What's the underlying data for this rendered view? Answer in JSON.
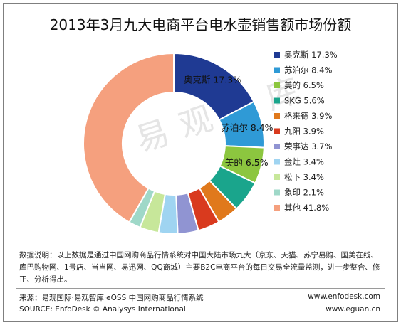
{
  "title": "2013年3月九大电商平台电水壶销售额市场份额",
  "watermark": "易观智库",
  "note": "数据说明：以上数据是通过中国网购商品行情系统对中国大陆市场九大（京东、天猫、苏宁易购、国美在线、库巴购物网、1号店、当当网、易迅网、QQ商城）主要B2C电商平台的每日交易全流量监测，进一步整合、修正、分析得出。",
  "footer": {
    "source_cn": "来源：易观国际·易观智库·eOSS 中国网购商品行情系统",
    "source_en": "SOURCE: EnfoDesk © Analysys International",
    "site1": "www.enfodesk.com",
    "site2": "www.eguan.cn"
  },
  "chart_data": {
    "type": "pie",
    "donut": true,
    "title": "2013年3月九大电商平台电水壶销售额市场份额",
    "unit": "%",
    "legend_position": "right",
    "series": [
      {
        "name": "奥克斯",
        "value": 17.3,
        "color": "#1f3a93"
      },
      {
        "name": "苏泊尔",
        "value": 8.4,
        "color": "#2f9ad6"
      },
      {
        "name": "美的",
        "value": 6.5,
        "color": "#8cc63f"
      },
      {
        "name": "SKG",
        "value": 5.6,
        "color": "#1aa58c"
      },
      {
        "name": "格来德",
        "value": 3.9,
        "color": "#e0791c"
      },
      {
        "name": "九阳",
        "value": 3.9,
        "color": "#d93a1e"
      },
      {
        "name": "荣事达",
        "value": 3.7,
        "color": "#9094d2"
      },
      {
        "name": "金灶",
        "value": 3.4,
        "color": "#9fd4f1"
      },
      {
        "name": "松下",
        "value": 3.4,
        "color": "#c7e79a"
      },
      {
        "name": "象印",
        "value": 2.1,
        "color": "#9fd8c8"
      },
      {
        "name": "其他",
        "value": 41.8,
        "color": "#f5a07e"
      }
    ],
    "slice_labels": [
      {
        "name": "奥克斯",
        "value": "17.3%"
      },
      {
        "name": "苏泊尔",
        "value": "8.4%"
      },
      {
        "name": "美的",
        "value": "6.5%"
      }
    ]
  }
}
